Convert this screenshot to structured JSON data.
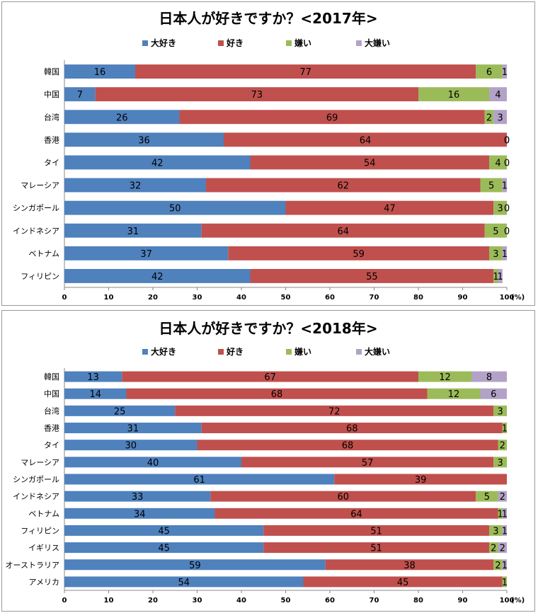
{
  "chart_data": [
    {
      "type": "bar",
      "orientation": "horizontal",
      "stacked": true,
      "title": "日本人が好きですか？<2017年>",
      "xlim": [
        0,
        100
      ],
      "xticks": [
        "0",
        "10",
        "20",
        "30",
        "40",
        "50",
        "60",
        "70",
        "80",
        "90",
        "100"
      ],
      "unit_label": "(%)",
      "legend_position": "top",
      "categories": [
        "韓国",
        "中国",
        "台湾",
        "香港",
        "タイ",
        "マレーシア",
        "シンガポール",
        "インドネシア",
        "ベトナム",
        "フィリピン"
      ],
      "series": [
        {
          "name": "大好き",
          "color": "#4f81bd",
          "values": [
            16,
            7,
            26,
            36,
            42,
            32,
            50,
            31,
            37,
            42
          ]
        },
        {
          "name": "好き",
          "color": "#c0504d",
          "values": [
            77,
            73,
            69,
            64,
            54,
            62,
            47,
            64,
            59,
            55
          ]
        },
        {
          "name": "嫌い",
          "color": "#9bbb59",
          "values": [
            6,
            16,
            2,
            0,
            4,
            5,
            3,
            5,
            3,
            1
          ]
        },
        {
          "name": "大嫌い",
          "color": "#b3a2c7",
          "values": [
            1,
            4,
            3,
            0,
            0,
            1,
            0,
            0,
            1,
            1
          ]
        }
      ]
    },
    {
      "type": "bar",
      "orientation": "horizontal",
      "stacked": true,
      "title": "日本人が好きですか？<2018年>",
      "xlim": [
        0,
        100
      ],
      "xticks": [
        "0",
        "10",
        "20",
        "30",
        "40",
        "50",
        "60",
        "70",
        "80",
        "90",
        "100"
      ],
      "unit_label": "(%)",
      "legend_position": "top",
      "categories": [
        "韓国",
        "中国",
        "台湾",
        "香港",
        "タイ",
        "マレーシア",
        "シンガポール",
        "インドネシア",
        "ベトナム",
        "フィリピン",
        "イギリス",
        "オーストラリア",
        "アメリカ"
      ],
      "series": [
        {
          "name": "大好き",
          "color": "#4f81bd",
          "values": [
            13,
            14,
            25,
            31,
            30,
            40,
            61,
            33,
            34,
            45,
            45,
            59,
            54
          ]
        },
        {
          "name": "好き",
          "color": "#c0504d",
          "values": [
            67,
            68,
            72,
            68,
            68,
            57,
            39,
            60,
            64,
            51,
            51,
            38,
            45
          ]
        },
        {
          "name": "嫌い",
          "color": "#9bbb59",
          "values": [
            12,
            12,
            3,
            1,
            2,
            3,
            null,
            5,
            1,
            3,
            2,
            2,
            1
          ]
        },
        {
          "name": "大嫌い",
          "color": "#b3a2c7",
          "values": [
            8,
            6,
            null,
            null,
            null,
            null,
            null,
            2,
            1,
            1,
            2,
            1,
            null
          ]
        }
      ]
    }
  ]
}
